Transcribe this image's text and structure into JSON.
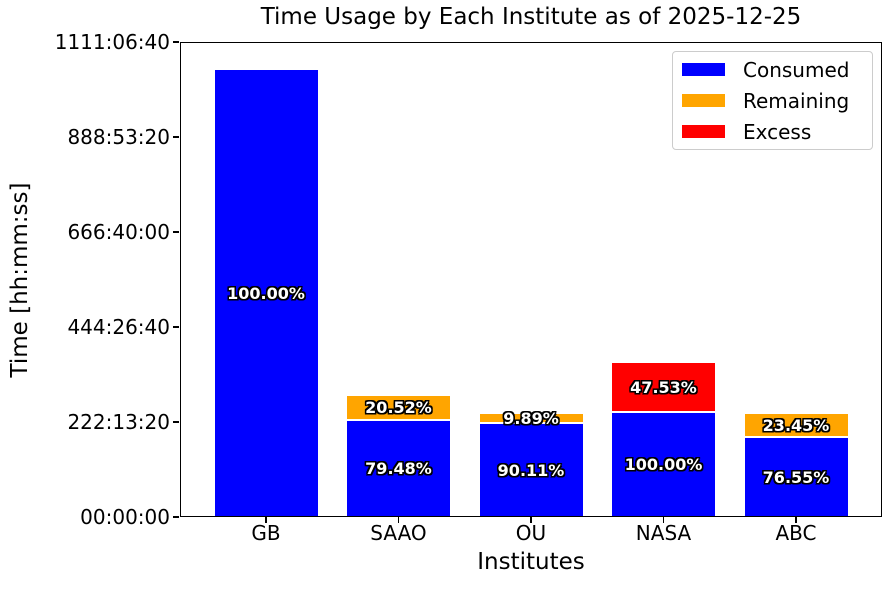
{
  "chart_data": {
    "type": "bar",
    "stacked": true,
    "title": "Time Usage by Each Institute as of 2025-12-25",
    "xlabel": "Institutes",
    "ylabel": "Time [hh:mm:ss]",
    "categories": [
      "GB",
      "SAAO",
      "OU",
      "NASA",
      "ABC"
    ],
    "series": [
      {
        "name": "Consumed",
        "color": "#0000ff",
        "values_seconds_est": [
          3772600,
          816600,
          789200,
          884200,
          670400
        ],
        "percent_labels": [
          "100.00%",
          "79.48%",
          "90.11%",
          "100.00%",
          "76.55%"
        ]
      },
      {
        "name": "Remaining",
        "color": "#ffa500",
        "values_seconds_est": [
          0,
          210800,
          86600,
          0,
          205400
        ],
        "percent_labels": [
          "",
          "20.52%",
          "9.89%",
          "",
          "23.45%"
        ]
      },
      {
        "name": "Excess",
        "color": "#ff0000",
        "values_seconds_est": [
          0,
          0,
          0,
          420300,
          0
        ],
        "percent_labels": [
          "",
          "",
          "",
          "47.53%",
          ""
        ]
      }
    ],
    "y_ticks": [
      {
        "seconds": 0,
        "label": "00:00:00"
      },
      {
        "seconds": 800000,
        "label": "222:13:20"
      },
      {
        "seconds": 1600000,
        "label": "444:26:40"
      },
      {
        "seconds": 2400000,
        "label": "666:40:00"
      },
      {
        "seconds": 3200000,
        "label": "888:53:20"
      },
      {
        "seconds": 4000000,
        "label": "1111:06:40"
      }
    ],
    "ylim_seconds": [
      0,
      4000000
    ],
    "grid": false,
    "legend": {
      "position": "upper right",
      "entries": [
        {
          "label": "Consumed",
          "color": "#0000ff"
        },
        {
          "label": "Remaining",
          "color": "#ffa500"
        },
        {
          "label": "Excess",
          "color": "#ff0000"
        }
      ]
    }
  }
}
